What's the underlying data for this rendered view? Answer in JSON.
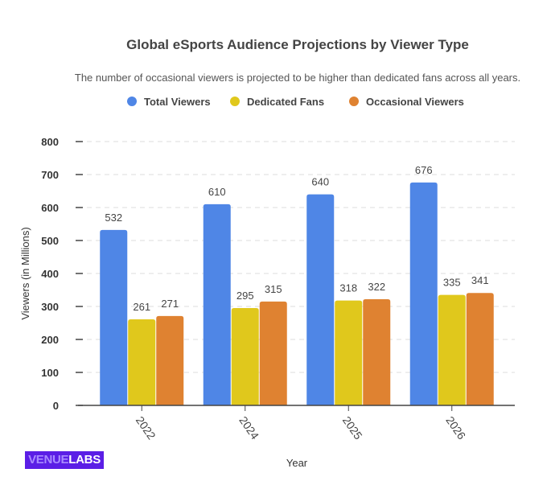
{
  "chart_data": {
    "type": "bar",
    "title": "Global eSports Audience Projections by Viewer Type",
    "subtitle": "The number of occasional viewers is projected to be higher than dedicated fans across all years.",
    "xlabel": "Year",
    "ylabel": "Viewers (in Millions)",
    "ylim": [
      0,
      800
    ],
    "yticks": [
      0,
      100,
      200,
      300,
      400,
      500,
      600,
      700,
      800
    ],
    "grid": true,
    "legend_position": "top",
    "categories": [
      "2022",
      "2024",
      "2025",
      "2026"
    ],
    "series": [
      {
        "name": "Total Viewers",
        "color": "#4f86e6",
        "values": [
          532,
          610,
          640,
          676
        ]
      },
      {
        "name": "Dedicated Fans",
        "color": "#e0c81c",
        "values": [
          261,
          295,
          318,
          335
        ]
      },
      {
        "name": "Occasional Viewers",
        "color": "#df8231",
        "values": [
          271,
          315,
          322,
          341
        ]
      }
    ]
  },
  "logo": {
    "part1": "VENUE",
    "part2": "LABS"
  }
}
